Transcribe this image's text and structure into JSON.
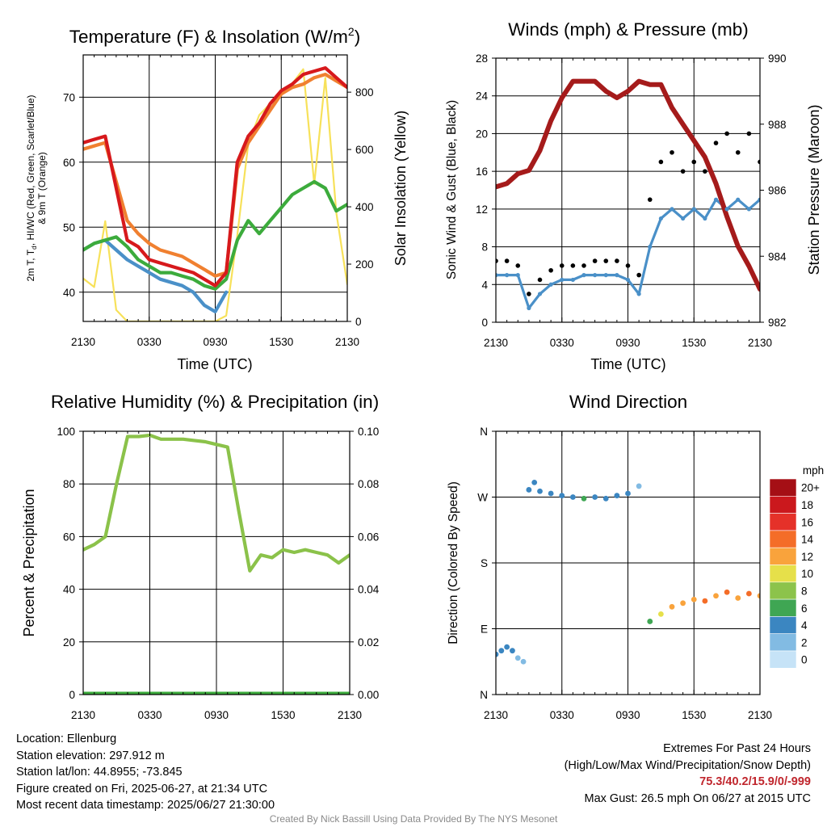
{
  "colors": {
    "temp": "#d7191c",
    "dewpoint": "#4a90c8",
    "heat_index": "#3cab3c",
    "temp9m": "#f08030",
    "solar": "#f7e15a",
    "wind": "#4a90c8",
    "gust": "#000000",
    "pressure": "#a51b1b",
    "rh": "#8bc24a",
    "precip": "#3cab3c"
  },
  "time_ticks": [
    "2130",
    "0330",
    "0930",
    "1530",
    "2130"
  ],
  "dir_ticks": [
    "N",
    "E",
    "S",
    "W",
    "N"
  ],
  "charts": {
    "temp": {
      "title": "Temperature (F) & Insolation (W/m",
      "title_sup": "2",
      "title_end": ")",
      "xlabel": "Time (UTC)",
      "ylabel_line1": "2m T, T",
      "ylabel_sub": "d",
      "ylabel_line1b": ", HI/WC (Red, Green, Scarlet/Blue)",
      "ylabel_line2": "& 9m T (Orange)",
      "y2label": "Solar Insolation (Yellow)",
      "yticks": [
        "40",
        "50",
        "60",
        "70"
      ],
      "y2ticks": [
        "0",
        "200",
        "400",
        "600",
        "800"
      ]
    },
    "wind": {
      "title": "Winds (mph) & Pressure (mb)",
      "xlabel": "Time (UTC)",
      "ylabel": "Sonic Wind & Gust (Blue, Black)",
      "y2label": "Station Pressure (Maroon)",
      "yticks": [
        "0",
        "4",
        "8",
        "12",
        "16",
        "20",
        "24",
        "28"
      ],
      "y2ticks": [
        "982",
        "984",
        "986",
        "988",
        "990"
      ]
    },
    "rh": {
      "title": "Relative Humidity (%) & Precipitation (in)",
      "ylabel": "Percent & Precipitation",
      "yticks": [
        "0",
        "20",
        "40",
        "60",
        "80",
        "100"
      ],
      "y2ticks": [
        "0.00",
        "0.02",
        "0.04",
        "0.06",
        "0.08",
        "0.10"
      ]
    },
    "dir": {
      "title": "Wind Direction",
      "ylabel": "Direction (Colored By Speed)",
      "legend_title": "mph",
      "legend_labels": [
        "20+",
        "18",
        "16",
        "14",
        "12",
        "10",
        "8",
        "6",
        "4",
        "2",
        "0"
      ],
      "legend_colors": [
        "#a50f15",
        "#cb181d",
        "#e53129",
        "#f46d28",
        "#f9a33c",
        "#e6e04a",
        "#8cc34b",
        "#3fa653",
        "#3b86c1",
        "#82bbe3",
        "#c6e3f7"
      ]
    }
  },
  "chart_data": [
    {
      "type": "line",
      "title": "Temperature (F) & Insolation (W/m2)",
      "xlabel": "Time (UTC)",
      "x_hours_since_2130": [
        0,
        1,
        2,
        3,
        4,
        5,
        6,
        7,
        8,
        9,
        10,
        11,
        12,
        13,
        14,
        15,
        16,
        17,
        18,
        19,
        20,
        21,
        22,
        23,
        24
      ],
      "ylim": [
        35.5,
        76.5
      ],
      "y2lim": [
        0,
        930
      ],
      "series": [
        {
          "name": "2m T (Red)",
          "axis": "left",
          "values": [
            63,
            63.5,
            64,
            56,
            48,
            47,
            45,
            44.5,
            44,
            43.5,
            43,
            42,
            41,
            43,
            60,
            64,
            66,
            69,
            71,
            72,
            73.5,
            74,
            74.5,
            73,
            71.5
          ]
        },
        {
          "name": "9m T (Orange)",
          "axis": "left",
          "values": [
            62,
            62.5,
            63,
            57,
            51,
            49,
            47.5,
            46.5,
            46,
            45.5,
            44.5,
            43.5,
            42.5,
            43,
            59,
            63,
            65.5,
            68,
            70.5,
            71.5,
            72,
            73,
            73.5,
            72.5,
            71.5
          ]
        },
        {
          "name": "HI/WC (Green)",
          "axis": "left",
          "values": [
            46.5,
            47.5,
            48,
            48.5,
            47,
            45,
            44,
            43,
            43,
            42.5,
            42,
            41,
            40.5,
            42,
            48,
            51,
            49,
            51,
            53,
            55,
            56,
            57,
            56,
            52.5,
            53.5
          ]
        },
        {
          "name": "Td (Blue)",
          "axis": "left",
          "values": [
            46.5,
            47.5,
            48,
            46.5,
            45,
            44,
            43,
            42,
            41.5,
            41,
            40,
            38,
            37,
            40,
            null,
            null,
            null,
            null,
            null,
            null,
            null,
            null,
            null,
            null,
            null
          ]
        },
        {
          "name": "Solar Insolation (Yellow)",
          "axis": "right",
          "values": [
            150,
            120,
            350,
            40,
            0,
            0,
            0,
            0,
            0,
            0,
            0,
            0,
            0,
            20,
            300,
            620,
            720,
            760,
            800,
            830,
            880,
            480,
            850,
            380,
            130
          ]
        }
      ]
    },
    {
      "type": "line",
      "title": "Winds (mph) & Pressure (mb)",
      "xlabel": "Time (UTC)",
      "x_hours_since_2130": [
        0,
        1,
        2,
        3,
        4,
        5,
        6,
        7,
        8,
        9,
        10,
        11,
        12,
        13,
        14,
        15,
        16,
        17,
        18,
        19,
        20,
        21,
        22,
        23,
        24
      ],
      "ylim": [
        0,
        28
      ],
      "y2lim": [
        982,
        990
      ],
      "series": [
        {
          "name": "Sonic Wind (Blue)",
          "axis": "left",
          "values": [
            5,
            5,
            5,
            1.5,
            3,
            4,
            4.5,
            4.5,
            5,
            5,
            5,
            5,
            4.5,
            3,
            8,
            11,
            12,
            11,
            12,
            11,
            13,
            12,
            13,
            12,
            13
          ]
        },
        {
          "name": "Gust (Black)",
          "axis": "left",
          "values": [
            6.5,
            6.5,
            6,
            3,
            4.5,
            5.5,
            6,
            6,
            6,
            6.5,
            6.5,
            6.5,
            6,
            5,
            13,
            17,
            18,
            16,
            17,
            16,
            19,
            20,
            18,
            20,
            17
          ]
        },
        {
          "name": "Station Pressure (Maroon)",
          "axis": "right",
          "values": [
            986.1,
            986.2,
            986.5,
            986.6,
            987.2,
            988.1,
            988.8,
            989.3,
            989.3,
            989.3,
            989.0,
            988.8,
            989.0,
            989.3,
            989.2,
            989.2,
            988.5,
            988.0,
            987.5,
            987.0,
            986.2,
            985.2,
            984.3,
            983.7,
            983.0
          ]
        }
      ]
    },
    {
      "type": "line",
      "title": "Relative Humidity (%) & Precipitation (in)",
      "x_hours_since_2130": [
        0,
        1,
        2,
        3,
        4,
        5,
        6,
        7,
        8,
        9,
        10,
        11,
        12,
        13,
        14,
        15,
        16,
        17,
        18,
        19,
        20,
        21,
        22,
        23,
        24
      ],
      "ylim": [
        0,
        100
      ],
      "y2lim": [
        0,
        0.1
      ],
      "series": [
        {
          "name": "Relative Humidity",
          "axis": "left",
          "values": [
            55,
            57,
            60,
            80,
            98,
            98,
            98.5,
            97,
            97,
            97,
            96.5,
            96,
            95,
            94,
            70,
            47,
            53,
            52,
            55,
            54,
            55,
            54,
            53,
            50,
            53
          ]
        },
        {
          "name": "Precipitation",
          "axis": "right",
          "values": [
            0,
            0,
            0,
            0,
            0,
            0,
            0,
            0,
            0,
            0,
            0,
            0,
            0,
            0,
            0,
            0,
            0,
            0,
            0,
            0,
            0,
            0,
            0,
            0,
            0
          ]
        }
      ]
    },
    {
      "type": "scatter",
      "title": "Wind Direction",
      "ylabel": "Direction (Colored By Speed)",
      "y_categories": [
        "N",
        "E",
        "S",
        "W",
        "N"
      ],
      "ylim_degrees": [
        0,
        360
      ],
      "x_hours_since_2130": [
        0,
        0.5,
        1,
        1.5,
        2,
        2.5,
        3,
        3.5,
        4,
        5,
        6,
        7,
        8,
        9,
        10,
        11,
        12,
        13,
        14,
        15,
        16,
        17,
        18,
        19,
        20,
        21,
        22,
        23,
        24
      ],
      "direction_degrees": [
        55,
        60,
        65,
        60,
        50,
        45,
        280,
        290,
        278,
        275,
        272,
        270,
        268,
        270,
        268,
        272,
        275,
        285,
        100,
        110,
        120,
        125,
        130,
        128,
        135,
        140,
        132,
        138,
        135
      ],
      "speed_mph": [
        4,
        3,
        4,
        3,
        2,
        1,
        4,
        3,
        4,
        4,
        4,
        4,
        5,
        4,
        4,
        4,
        4,
        2,
        6,
        10,
        12,
        11,
        12,
        14,
        12,
        13,
        12,
        13,
        12
      ]
    }
  ],
  "info_left": {
    "location": "Location: Ellenburg",
    "elevation": "Station elevation: 297.912 m",
    "latlon": "Station lat/lon: 44.8955; -73.845",
    "created": "Figure created on Fri, 2025-06-27, at 21:34 UTC",
    "recent": "Most recent data timestamp: 2025/06/27 21:30:00"
  },
  "info_right": {
    "heading": "Extremes For Past 24 Hours",
    "subheading": "(High/Low/Max Wind/Precipitation/Snow Depth)",
    "values": "75.3/40.2/15.9/0/-999",
    "max_gust": "Max Gust: 26.5 mph On 06/27 at 2015 UTC"
  },
  "credit": "Created By Nick Bassill Using Data Provided By The NYS Mesonet"
}
